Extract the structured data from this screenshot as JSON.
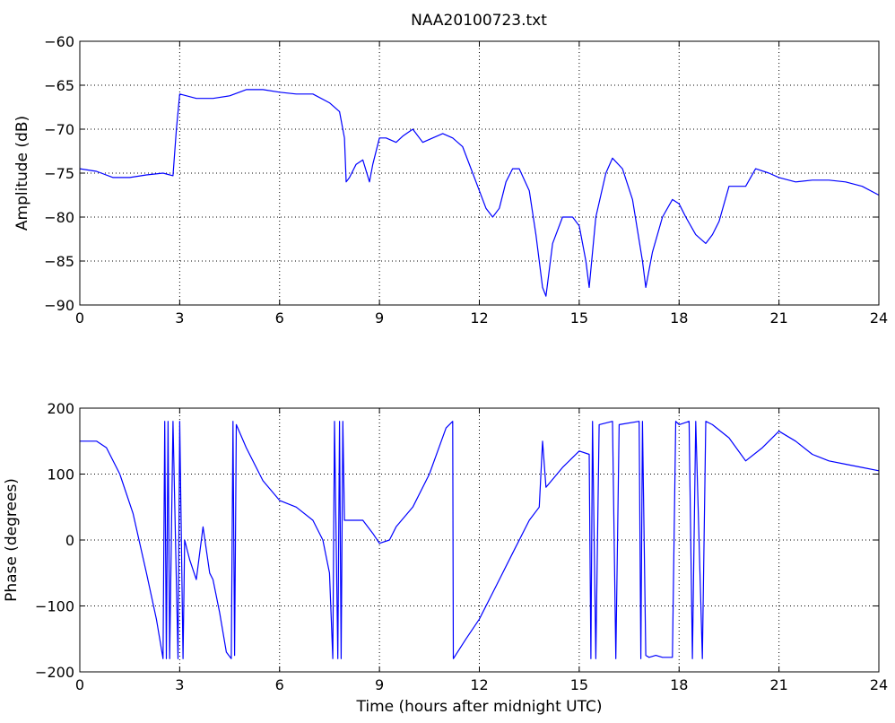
{
  "figure": {
    "title": "NAA20100723.txt",
    "line_color": "#0000ff"
  },
  "chart_data": [
    {
      "type": "line",
      "title": "NAA20100723.txt",
      "xlabel": "",
      "ylabel": "Amplitude (dB)",
      "xlim": [
        0,
        24
      ],
      "ylim": [
        -90,
        -60
      ],
      "xticks": [
        0,
        3,
        6,
        9,
        12,
        15,
        18,
        21,
        24
      ],
      "yticks": [
        -90,
        -85,
        -80,
        -75,
        -70,
        -65,
        -60
      ],
      "xtick_labels": [
        "0",
        "3",
        "6",
        "9",
        "12",
        "15",
        "18",
        "21",
        "24"
      ],
      "ytick_labels": [
        "−90",
        "−85",
        "−80",
        "−75",
        "−70",
        "−65",
        "−60"
      ],
      "grid": true,
      "series": [
        {
          "color": "#0000ff",
          "x": [
            0,
            0.5,
            1,
            1.5,
            2,
            2.5,
            2.8,
            2.9,
            3.0,
            3.5,
            4,
            4.5,
            5,
            5.5,
            6,
            6.5,
            7,
            7.5,
            7.8,
            7.95,
            8.0,
            8.1,
            8.3,
            8.5,
            8.7,
            8.8,
            9.0,
            9.2,
            9.5,
            9.7,
            10,
            10.3,
            10.6,
            10.9,
            11.2,
            11.5,
            11.8,
            12.0,
            12.2,
            12.4,
            12.6,
            12.8,
            13.0,
            13.2,
            13.5,
            13.7,
            13.9,
            14.0,
            14.2,
            14.5,
            14.8,
            15.0,
            15.2,
            15.3,
            15.5,
            15.8,
            16.0,
            16.3,
            16.6,
            16.9,
            17.0,
            17.2,
            17.5,
            17.8,
            18.0,
            18.2,
            18.5,
            18.8,
            19.0,
            19.2,
            19.5,
            20.0,
            20.3,
            20.7,
            21.0,
            21.5,
            22.0,
            22.5,
            23.0,
            23.5,
            24.0
          ],
          "y": [
            -74.5,
            -74.8,
            -75.5,
            -75.5,
            -75.2,
            -75.0,
            -75.3,
            -70,
            -66,
            -66.5,
            -66.5,
            -66.2,
            -65.5,
            -65.5,
            -65.8,
            -66,
            -66,
            -67,
            -68,
            -71,
            -76,
            -75.5,
            -74,
            -73.5,
            -76,
            -74,
            -71,
            -71,
            -71.5,
            -70.8,
            -70,
            -71.5,
            -71,
            -70.5,
            -71,
            -72,
            -75,
            -77,
            -79,
            -80,
            -79,
            -76,
            -74.5,
            -74.5,
            -77,
            -82,
            -88,
            -89,
            -83,
            -80,
            -80,
            -81,
            -85,
            -88,
            -80,
            -75,
            -73.3,
            -74.5,
            -78,
            -85,
            -88,
            -84,
            -80,
            -78,
            -78.5,
            -80,
            -82,
            -83,
            -82,
            -80.5,
            -76.5,
            -76.5,
            -74.5,
            -75,
            -75.5,
            -76,
            -75.8,
            -75.8,
            -76,
            -76.5,
            -77.5
          ]
        }
      ]
    },
    {
      "type": "line",
      "title": "",
      "xlabel": "Time (hours after midnight UTC)",
      "ylabel": "Phase (degrees)",
      "xlim": [
        0,
        24
      ],
      "ylim": [
        -200,
        200
      ],
      "xticks": [
        0,
        3,
        6,
        9,
        12,
        15,
        18,
        21,
        24
      ],
      "yticks": [
        -200,
        -100,
        0,
        100,
        200
      ],
      "xtick_labels": [
        "0",
        "3",
        "6",
        "9",
        "12",
        "15",
        "18",
        "21",
        "24"
      ],
      "ytick_labels": [
        "−200",
        "−100",
        "0",
        "100",
        "200"
      ],
      "grid": true,
      "series": [
        {
          "color": "#0000ff",
          "x": [
            0,
            0.5,
            0.8,
            1.2,
            1.6,
            2.0,
            2.3,
            2.5,
            2.55,
            2.6,
            2.65,
            2.7,
            2.8,
            2.95,
            3.0,
            3.1,
            3.15,
            3.3,
            3.5,
            3.7,
            3.9,
            4.0,
            4.2,
            4.4,
            4.55,
            4.6,
            4.65,
            4.7,
            5.0,
            5.5,
            6.0,
            6.5,
            7.0,
            7.3,
            7.5,
            7.6,
            7.65,
            7.75,
            7.8,
            7.85,
            7.9,
            7.95,
            8.0,
            8.5,
            8.8,
            9.0,
            9.3,
            9.5,
            10,
            10.5,
            11.0,
            11.2,
            11.22,
            11.6,
            12.0,
            12.5,
            13.0,
            13.5,
            13.8,
            13.9,
            14.0,
            14.5,
            15.0,
            15.3,
            15.35,
            15.4,
            15.5,
            15.6,
            16.0,
            16.1,
            16.2,
            16.8,
            16.85,
            16.9,
            17.0,
            17.1,
            17.3,
            17.5,
            17.8,
            17.9,
            18.0,
            18.3,
            18.4,
            18.5,
            18.7,
            18.8,
            19.0,
            19.5,
            20.0,
            20.5,
            21.0,
            21.5,
            22.0,
            22.5,
            23.0,
            23.5,
            24.0
          ],
          "y": [
            150,
            150,
            140,
            100,
            40,
            -50,
            -120,
            -180,
            180,
            -180,
            180,
            -180,
            180,
            -180,
            180,
            -180,
            0,
            -30,
            -60,
            20,
            -50,
            -60,
            -110,
            -170,
            -180,
            180,
            -175,
            175,
            140,
            90,
            60,
            50,
            30,
            0,
            -50,
            -180,
            180,
            -180,
            180,
            -180,
            180,
            30,
            30,
            30,
            10,
            -5,
            0,
            20,
            50,
            100,
            170,
            180,
            -180,
            -150,
            -120,
            -70,
            -20,
            30,
            50,
            150,
            80,
            110,
            135,
            130,
            -180,
            180,
            -180,
            175,
            180,
            -180,
            175,
            180,
            -180,
            180,
            -175,
            -178,
            -175,
            -178,
            -178,
            180,
            175,
            180,
            -180,
            180,
            -180,
            180,
            175,
            155,
            120,
            140,
            165,
            150,
            130,
            120,
            115,
            110,
            105
          ]
        }
      ]
    }
  ]
}
